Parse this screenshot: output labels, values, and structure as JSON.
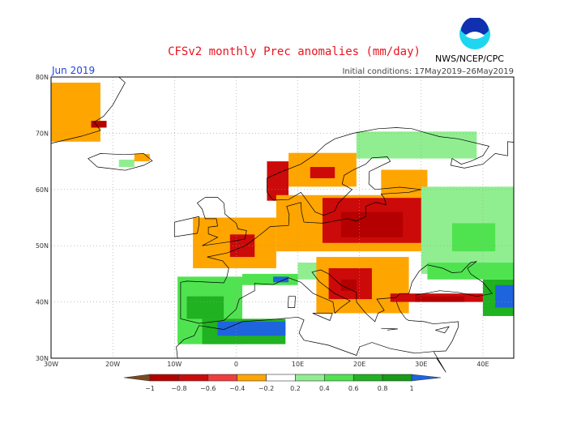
{
  "header": {
    "title": "CFSv2 monthly Prec anomalies (mm/day)",
    "month": "Jun 2019",
    "initial_conditions": "Initial conditions: 17May2019–26May2019",
    "organization": "NWS/NCEP/CPC",
    "logo_text": "NOAA"
  },
  "map": {
    "lon_range": [
      -30,
      45
    ],
    "lat_range": [
      30,
      80
    ],
    "lon_ticks": [
      {
        "v": -30,
        "label": "30W"
      },
      {
        "v": -20,
        "label": "20W"
      },
      {
        "v": -10,
        "label": "10W"
      },
      {
        "v": 0,
        "label": "0"
      },
      {
        "v": 10,
        "label": "10E"
      },
      {
        "v": 20,
        "label": "20E"
      },
      {
        "v": 30,
        "label": "30E"
      },
      {
        "v": 40,
        "label": "40E"
      }
    ],
    "lat_ticks": [
      {
        "v": 30,
        "label": "30N"
      },
      {
        "v": 40,
        "label": "40N"
      },
      {
        "v": 50,
        "label": "50N"
      },
      {
        "v": 60,
        "label": "60N"
      },
      {
        "v": 70,
        "label": "70N"
      },
      {
        "v": 80,
        "label": "80N"
      }
    ],
    "anomaly_patches": [
      {
        "lon": [
          -30,
          -22
        ],
        "lat": [
          68.5,
          79
        ],
        "cat": "m04"
      },
      {
        "lon": [
          -23.5,
          -21
        ],
        "lat": [
          71,
          72.2
        ],
        "cat": "m08"
      },
      {
        "lon": [
          -19,
          -16.5
        ],
        "lat": [
          64,
          65.3
        ],
        "cat": "p02"
      },
      {
        "lon": [
          -16.5,
          -14
        ],
        "lat": [
          65,
          66.3
        ],
        "cat": "m04"
      },
      {
        "lon": [
          5,
          8.5
        ],
        "lat": [
          58,
          65
        ],
        "cat": "m06"
      },
      {
        "lon": [
          8.5,
          19.5
        ],
        "lat": [
          60.5,
          66.5
        ],
        "cat": "m04"
      },
      {
        "lon": [
          12,
          16
        ],
        "lat": [
          62,
          64
        ],
        "cat": "m06"
      },
      {
        "lon": [
          19.5,
          39
        ],
        "lat": [
          65.5,
          70.3
        ],
        "cat": "p02"
      },
      {
        "lon": [
          23.5,
          31
        ],
        "lat": [
          59,
          63.5
        ],
        "cat": "m04"
      },
      {
        "lon": [
          -7,
          6.5
        ],
        "lat": [
          46,
          55
        ],
        "cat": "m04"
      },
      {
        "lon": [
          -1,
          3
        ],
        "lat": [
          48,
          52
        ],
        "cat": "m06"
      },
      {
        "lon": [
          6.5,
          31
        ],
        "lat": [
          49,
          59
        ],
        "cat": "m04"
      },
      {
        "lon": [
          14,
          30
        ],
        "lat": [
          50.5,
          58.5
        ],
        "cat": "m06"
      },
      {
        "lon": [
          17,
          27
        ],
        "lat": [
          51.5,
          56
        ],
        "cat": "m08"
      },
      {
        "lon": [
          30,
          45
        ],
        "lat": [
          45,
          60.5
        ],
        "cat": "p02"
      },
      {
        "lon": [
          35,
          42
        ],
        "lat": [
          49,
          54
        ],
        "cat": "p04"
      },
      {
        "lon": [
          10,
          17
        ],
        "lat": [
          44,
          47
        ],
        "cat": "p02"
      },
      {
        "lon": [
          13,
          28
        ],
        "lat": [
          38,
          48
        ],
        "cat": "m04"
      },
      {
        "lon": [
          15,
          22
        ],
        "lat": [
          40.5,
          46
        ],
        "cat": "m06"
      },
      {
        "lon": [
          17,
          19.5
        ],
        "lat": [
          42,
          44
        ],
        "cat": "m08"
      },
      {
        "lon": [
          -9.5,
          1
        ],
        "lat": [
          32.5,
          44.5
        ],
        "cat": "p04"
      },
      {
        "lon": [
          -8,
          -2
        ],
        "lat": [
          37,
          41
        ],
        "cat": "p06"
      },
      {
        "lon": [
          -5.5,
          8
        ],
        "lat": [
          32.5,
          37
        ],
        "cat": "p06"
      },
      {
        "lon": [
          -3,
          8
        ],
        "lat": [
          34,
          36.5
        ],
        "cat": "p10"
      },
      {
        "lon": [
          1,
          10
        ],
        "lat": [
          43,
          45
        ],
        "cat": "p04"
      },
      {
        "lon": [
          6,
          8.5
        ],
        "lat": [
          43.5,
          44.5
        ],
        "cat": "p10"
      },
      {
        "lon": [
          25,
          42
        ],
        "lat": [
          40,
          41.5
        ],
        "cat": "m06"
      },
      {
        "lon": [
          29,
          37
        ],
        "lat": [
          40,
          41
        ],
        "cat": "m08"
      },
      {
        "lon": [
          40,
          45
        ],
        "lat": [
          37.5,
          44
        ],
        "cat": "p06"
      },
      {
        "lon": [
          42,
          45
        ],
        "lat": [
          39,
          43
        ],
        "cat": "p10"
      },
      {
        "lon": [
          31,
          45
        ],
        "lat": [
          44,
          47
        ],
        "cat": "p04"
      }
    ]
  },
  "colorbar": {
    "bins": [
      {
        "cat": "m10",
        "color": "#7a4a1e"
      },
      {
        "cat": "m08",
        "color": "#b40000"
      },
      {
        "cat": "m06",
        "color": "#cc0a0a"
      },
      {
        "cat": "m04a",
        "color": "#f23c3c"
      },
      {
        "cat": "m04",
        "color": "#ffa500"
      },
      {
        "cat": "zero",
        "color": "#ffffff"
      },
      {
        "cat": "p02",
        "color": "#90ee90"
      },
      {
        "cat": "p04",
        "color": "#50e350"
      },
      {
        "cat": "p06",
        "color": "#20b220"
      },
      {
        "cat": "p08",
        "color": "#169c16"
      },
      {
        "cat": "p10",
        "color": "#1e64dc"
      }
    ],
    "labels": [
      "−1",
      "−0.8",
      "−0.6",
      "−0.4",
      "−0.2",
      "0.2",
      "0.4",
      "0.6",
      "0.8",
      "1"
    ]
  }
}
